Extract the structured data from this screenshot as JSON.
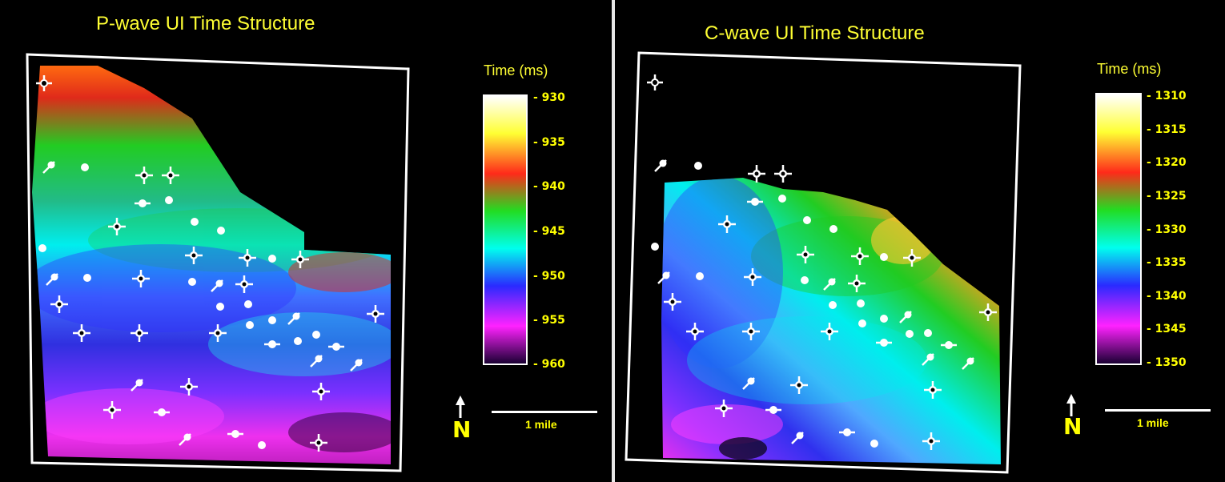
{
  "left": {
    "title": "P-wave UI Time Structure",
    "colorbar": {
      "label": "Time (ms)",
      "ticks": [
        "- 930",
        "- 935",
        "- 940",
        "- 945",
        "- 950",
        "- 955",
        "- 960"
      ]
    },
    "scale_label": "1 mile",
    "north_label": "N"
  },
  "right": {
    "title": "C-wave UI Time Structure",
    "colorbar": {
      "label": "Time (ms)",
      "ticks": [
        "- 1310",
        "- 1315",
        "- 1320",
        "- 1325",
        "- 1330",
        "- 1335",
        "- 1340",
        "- 1345",
        "- 1350"
      ]
    },
    "scale_label": "1 mile",
    "north_label": "N"
  },
  "colors": {
    "title": "#ffff33",
    "ticks": "#ffff00",
    "scale": [
      "#ffffff",
      "#ffff33",
      "#ff2a1a",
      "#22dd22",
      "#00ffee",
      "#2a2aff",
      "#ff22ff",
      "#1a0033"
    ]
  }
}
